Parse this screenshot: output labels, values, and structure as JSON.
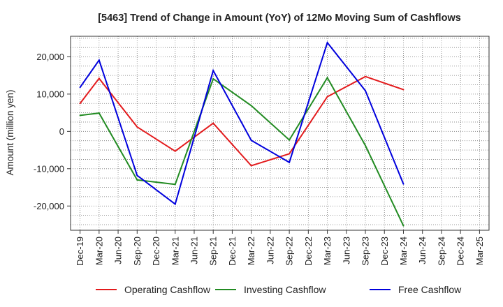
{
  "chart_data": {
    "type": "line",
    "title": "[5463]  Trend of Change in Amount (YoY) of 12Mo Moving Sum of Cashflows",
    "ylabel": "Amount (million yen)",
    "xlabel": "",
    "ylim": [
      -26500,
      25500
    ],
    "yticks": [
      20000,
      10000,
      0,
      -10000,
      -20000
    ],
    "ytick_labels": [
      "20,000",
      "10,000",
      "0",
      "-10,000",
      "-20,000"
    ],
    "categories": [
      "Dec-19",
      "Mar-20",
      "Jun-20",
      "Sep-20",
      "Dec-20",
      "Mar-21",
      "Jun-21",
      "Sep-21",
      "Dec-21",
      "Mar-22",
      "Jun-22",
      "Sep-22",
      "Dec-22",
      "Mar-23",
      "Jun-23",
      "Sep-23",
      "Dec-23",
      "Mar-24",
      "Jun-24",
      "Sep-24",
      "Dec-24",
      "Mar-25"
    ],
    "series": [
      {
        "name": "Operating Cashflow",
        "color": "#e31a1c",
        "values": [
          7500,
          14200,
          null,
          1200,
          null,
          -5300,
          null,
          2200,
          null,
          -9200,
          null,
          -6000,
          null,
          9300,
          null,
          14700,
          null,
          11200,
          null,
          null,
          null,
          null
        ]
      },
      {
        "name": "Investing Cashflow",
        "color": "#228b22",
        "values": [
          4300,
          4900,
          null,
          -13000,
          null,
          -14200,
          null,
          14100,
          null,
          6900,
          null,
          -2300,
          null,
          14400,
          null,
          -3800,
          null,
          -25300,
          null,
          null,
          null,
          null
        ]
      },
      {
        "name": "Free Cashflow",
        "color": "#0000dd",
        "values": [
          11800,
          19100,
          null,
          -11800,
          null,
          -19500,
          null,
          16300,
          null,
          -2400,
          null,
          -8300,
          null,
          23800,
          null,
          10900,
          null,
          -14100,
          null,
          null,
          null,
          null
        ]
      }
    ],
    "legend_position": "bottom",
    "grid": true
  }
}
